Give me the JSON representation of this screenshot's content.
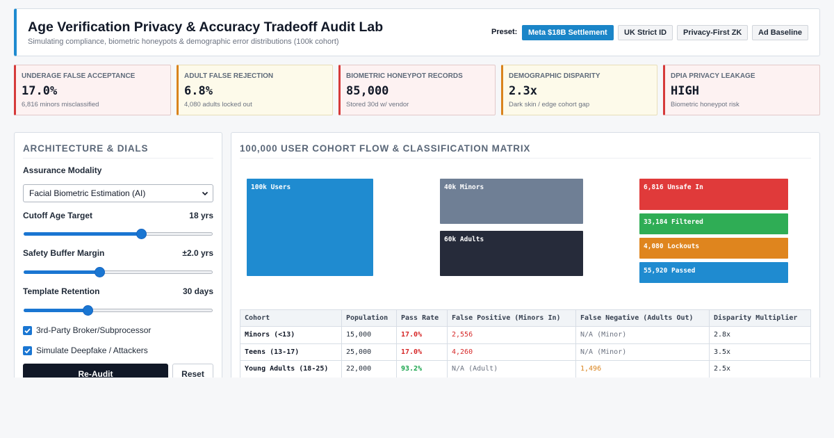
{
  "header": {
    "title": "Age Verification Privacy & Accuracy Tradeoff Audit Lab",
    "subtitle": "Simulating compliance, biometric honeypots & demographic error distributions (100k cohort)",
    "preset_label": "Preset:",
    "presets": [
      "Meta $18B Settlement",
      "UK Strict ID",
      "Privacy-First ZK",
      "Ad Baseline"
    ],
    "active_preset": "Meta $18B Settlement"
  },
  "metrics": [
    {
      "label": "Underage False Acceptance",
      "value": "17.0%",
      "sub": "6,816 minors misclassified",
      "severity": "danger"
    },
    {
      "label": "Adult False Rejection",
      "value": "6.8%",
      "sub": "4,080 adults locked out",
      "severity": "warning"
    },
    {
      "label": "Biometric Honeypot Records",
      "value": "85,000",
      "sub": "Stored 30d w/ vendor",
      "severity": "danger"
    },
    {
      "label": "Demographic Disparity",
      "value": "2.3x",
      "sub": "Dark skin / edge cohort gap",
      "severity": "warning"
    },
    {
      "label": "DPIA Privacy Leakage",
      "value": "HIGH",
      "sub": "Biometric honeypot risk",
      "severity": "danger"
    }
  ],
  "controls": {
    "title": "Architecture & Dials",
    "modality_label": "Assurance Modality",
    "modality_value": "Facial Biometric Estimation (AI)",
    "cutoff_label": "Cutoff Age Target",
    "cutoff_value": "18 yrs",
    "cutoff_level": 0.62,
    "buffer_label": "Safety Buffer Margin",
    "buffer_value": "±2.0 yrs",
    "buffer_level": 0.4,
    "retention_label": "Template Retention",
    "retention_value": "30 days",
    "retention_level": 0.34,
    "broker_label": "3rd-Party Broker/Subprocessor",
    "broker_checked": true,
    "deepfake_label": "Simulate Deepfake / Attackers",
    "deepfake_checked": true,
    "reaudit_label": "Re-Audit",
    "reset_label": "Reset"
  },
  "flow": {
    "title": "100,000 User Cohort Flow & Classification Matrix",
    "source": "100k Users",
    "minors": "40k Minors",
    "adults": "60k Adults",
    "unsafe": "6,816 Unsafe In",
    "filtered": "33,184 Filtered",
    "lockouts": "4,080 Lockouts",
    "passed": "55,920 Passed",
    "colors": {
      "source": "#1f8bd0",
      "minors": "#6f7f95",
      "adults": "#262b3a",
      "unsafe": "#e03a3a",
      "filtered": "#2fad55",
      "lockouts": "#df851e",
      "passed": "#1f8bd0"
    }
  },
  "table": {
    "headers": [
      "Cohort",
      "Population",
      "Pass Rate",
      "False Positive (Minors In)",
      "False Negative (Adults Out)",
      "Disparity Multiplier"
    ],
    "rows": [
      [
        "Minors (<13)",
        "15,000",
        "17.0%",
        "2,556",
        "N/A (Minor)",
        "2.8x"
      ],
      [
        "Teens (13-17)",
        "25,000",
        "17.0%",
        "4,260",
        "N/A (Minor)",
        "3.5x"
      ],
      [
        "Young Adults (18-25)",
        "22,000",
        "93.2%",
        "N/A (Adult)",
        "1,496",
        "2.5x"
      ]
    ]
  }
}
